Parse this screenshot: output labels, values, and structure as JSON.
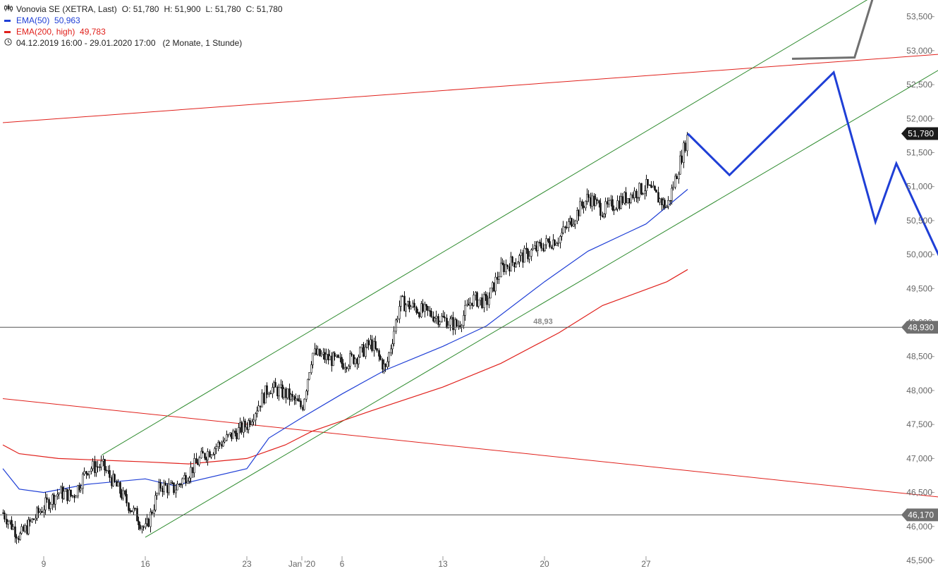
{
  "legend": {
    "title": "Vonovia SE (XETRA, Last)",
    "ohlc": [
      {
        "k": "O:",
        "v": "51,780"
      },
      {
        "k": "H:",
        "v": "51,900"
      },
      {
        "k": "L:",
        "v": "51,780"
      },
      {
        "k": "C:",
        "v": "51,780"
      }
    ],
    "ema50": {
      "label": "EMA(50)",
      "value": "50,963",
      "color": "#1f3fd6"
    },
    "ema200": {
      "label": "EMA(200, high)",
      "value": "49,783",
      "color": "#e0201b"
    },
    "range": "04.12.2019 16:00 - 29.01.2020 17:00",
    "period": "(2 Monate, 1 Stunde)"
  },
  "chart_data": {
    "type": "candlestick",
    "instrument": "Vonovia SE (XETRA, Last)",
    "y_axis": {
      "position": "right",
      "min": 45.5,
      "max": 53.6,
      "ticks": [
        {
          "v": 45.5,
          "label": "45,500"
        },
        {
          "v": 46.0,
          "label": "46,000"
        },
        {
          "v": 46.5,
          "label": "46,500"
        },
        {
          "v": 47.0,
          "label": "47,000"
        },
        {
          "v": 47.5,
          "label": "47,500"
        },
        {
          "v": 48.0,
          "label": "48,000"
        },
        {
          "v": 48.5,
          "label": "48,500"
        },
        {
          "v": 49.0,
          "label": "49,000"
        },
        {
          "v": 49.5,
          "label": "49,500"
        },
        {
          "v": 50.0,
          "label": "50,000"
        },
        {
          "v": 50.5,
          "label": "50,500"
        },
        {
          "v": 51.0,
          "label": "51,000"
        },
        {
          "v": 51.5,
          "label": "51,500"
        },
        {
          "v": 52.0,
          "label": "52,000"
        },
        {
          "v": 52.5,
          "label": "52,500"
        },
        {
          "v": 53.0,
          "label": "53,000"
        },
        {
          "v": 53.5,
          "label": "53,500"
        }
      ]
    },
    "x_axis": {
      "first_date": "2019-12-04",
      "last_date": "2020-01-29",
      "ticks": [
        {
          "date": "2019-12-09",
          "label": "9"
        },
        {
          "date": "2019-12-16",
          "label": "16"
        },
        {
          "date": "2019-12-23",
          "label": "23"
        },
        {
          "date": "2020-01-02",
          "label": "Jan '20"
        },
        {
          "date": "2020-01-06",
          "label": "6"
        },
        {
          "date": "2020-01-13",
          "label": "13"
        },
        {
          "date": "2020-01-20",
          "label": "20"
        },
        {
          "date": "2020-01-27",
          "label": "27"
        }
      ]
    },
    "price_path": [
      {
        "date": "2019-12-04",
        "price": 46.2
      },
      {
        "date": "2019-12-06",
        "price": 45.85
      },
      {
        "date": "2019-12-09",
        "price": 46.3
      },
      {
        "date": "2019-12-10",
        "price": 46.5
      },
      {
        "date": "2019-12-11",
        "price": 46.45
      },
      {
        "date": "2019-12-12",
        "price": 46.85
      },
      {
        "date": "2019-12-13",
        "price": 46.9
      },
      {
        "date": "2019-12-16",
        "price": 45.95
      },
      {
        "date": "2019-12-17",
        "price": 46.6
      },
      {
        "date": "2019-12-18",
        "price": 46.55
      },
      {
        "date": "2019-12-19",
        "price": 46.8
      },
      {
        "date": "2019-12-20",
        "price": 47.05
      },
      {
        "date": "2019-12-23",
        "price": 47.5
      },
      {
        "date": "2019-12-24",
        "price": 47.65
      },
      {
        "date": "2019-12-27",
        "price": 48.05
      },
      {
        "date": "2019-12-30",
        "price": 47.95
      },
      {
        "date": "2020-01-02",
        "price": 47.75
      },
      {
        "date": "2020-01-03",
        "price": 48.55
      },
      {
        "date": "2020-01-06",
        "price": 48.4
      },
      {
        "date": "2020-01-07",
        "price": 48.5
      },
      {
        "date": "2020-01-08",
        "price": 48.7
      },
      {
        "date": "2020-01-09",
        "price": 48.3
      },
      {
        "date": "2020-01-10",
        "price": 49.3
      },
      {
        "date": "2020-01-13",
        "price": 49.05
      },
      {
        "date": "2020-01-14",
        "price": 48.95
      },
      {
        "date": "2020-01-15",
        "price": 49.35
      },
      {
        "date": "2020-01-16",
        "price": 49.3
      },
      {
        "date": "2020-01-17",
        "price": 49.8
      },
      {
        "date": "2020-01-20",
        "price": 50.15
      },
      {
        "date": "2020-01-21",
        "price": 50.25
      },
      {
        "date": "2020-01-22",
        "price": 50.55
      },
      {
        "date": "2020-01-23",
        "price": 50.85
      },
      {
        "date": "2020-01-24",
        "price": 50.65
      },
      {
        "date": "2020-01-27",
        "price": 51.0
      },
      {
        "date": "2020-01-28",
        "price": 50.7
      },
      {
        "date": "2020-01-29",
        "price": 51.78
      }
    ],
    "ema50": [
      {
        "date": "2019-12-04",
        "v": 46.85
      },
      {
        "date": "2019-12-06",
        "v": 46.55
      },
      {
        "date": "2019-12-09",
        "v": 46.5
      },
      {
        "date": "2019-12-12",
        "v": 46.62
      },
      {
        "date": "2019-12-16",
        "v": 46.7
      },
      {
        "date": "2019-12-18",
        "v": 46.6
      },
      {
        "date": "2019-12-23",
        "v": 46.85
      },
      {
        "date": "2019-12-27",
        "v": 47.3
      },
      {
        "date": "2020-01-02",
        "v": 47.6
      },
      {
        "date": "2020-01-06",
        "v": 47.95
      },
      {
        "date": "2020-01-09",
        "v": 48.3
      },
      {
        "date": "2020-01-13",
        "v": 48.65
      },
      {
        "date": "2020-01-16",
        "v": 48.95
      },
      {
        "date": "2020-01-20",
        "v": 49.6
      },
      {
        "date": "2020-01-23",
        "v": 50.05
      },
      {
        "date": "2020-01-27",
        "v": 50.45
      },
      {
        "date": "2020-01-29",
        "v": 50.96
      }
    ],
    "ema200": [
      {
        "date": "2019-12-04",
        "v": 47.2
      },
      {
        "date": "2019-12-06",
        "v": 47.07
      },
      {
        "date": "2019-12-10",
        "v": 47.0
      },
      {
        "date": "2019-12-16",
        "v": 46.95
      },
      {
        "date": "2019-12-19",
        "v": 46.92
      },
      {
        "date": "2019-12-23",
        "v": 47.0
      },
      {
        "date": "2019-12-30",
        "v": 47.2
      },
      {
        "date": "2020-01-03",
        "v": 47.4
      },
      {
        "date": "2020-01-08",
        "v": 47.7
      },
      {
        "date": "2020-01-13",
        "v": 48.05
      },
      {
        "date": "2020-01-17",
        "v": 48.4
      },
      {
        "date": "2020-01-21",
        "v": 48.85
      },
      {
        "date": "2020-01-24",
        "v": 49.25
      },
      {
        "date": "2020-01-28",
        "v": 49.6
      },
      {
        "date": "2020-01-29",
        "v": 49.78
      }
    ],
    "trendlines": [
      {
        "color": "#e0201b",
        "from": {
          "date": "2019-12-04",
          "v": 51.94
        },
        "to": {
          "date": "2020-02-12",
          "v": 52.99
        }
      },
      {
        "color": "#e0201b",
        "from": {
          "date": "2019-12-04",
          "v": 47.88
        },
        "to": {
          "date": "2020-02-12",
          "v": 46.37
        }
      },
      {
        "color": "#2e8b2e",
        "from": {
          "date": "2019-12-13",
          "v": 47.05
        },
        "to": {
          "date": "2020-02-07",
          "v": 53.82
        }
      },
      {
        "color": "#2e8b2e",
        "from": {
          "date": "2019-12-16",
          "v": 45.84
        },
        "to": {
          "date": "2020-02-12",
          "v": 53.07
        }
      }
    ],
    "horizontal_levels": [
      {
        "v": 48.93,
        "label": "48,930",
        "annotation": "48,93"
      },
      {
        "v": 46.17,
        "label": "46,170",
        "annotation": ""
      }
    ],
    "last_price": {
      "v": 51.78,
      "label": "51,780"
    },
    "forecast_paths": [
      {
        "color": "#1f3fd6",
        "points": [
          {
            "date": "2020-01-29",
            "v": 51.78
          },
          {
            "date": "2020-01-31",
            "v": 51.17
          },
          {
            "date": "2020-02-05",
            "v": 52.68
          },
          {
            "date": "2020-02-07",
            "v": 50.48
          },
          {
            "date": "2020-02-08",
            "v": 51.34
          },
          {
            "date": "2020-02-11",
            "v": 49.35
          }
        ]
      },
      {
        "color": "#707070",
        "points": [
          {
            "date": "2020-02-03",
            "v": 52.88
          },
          {
            "date": "2020-02-06",
            "v": 52.9
          },
          {
            "date": "2020-02-07",
            "v": 53.9
          }
        ]
      }
    ]
  }
}
